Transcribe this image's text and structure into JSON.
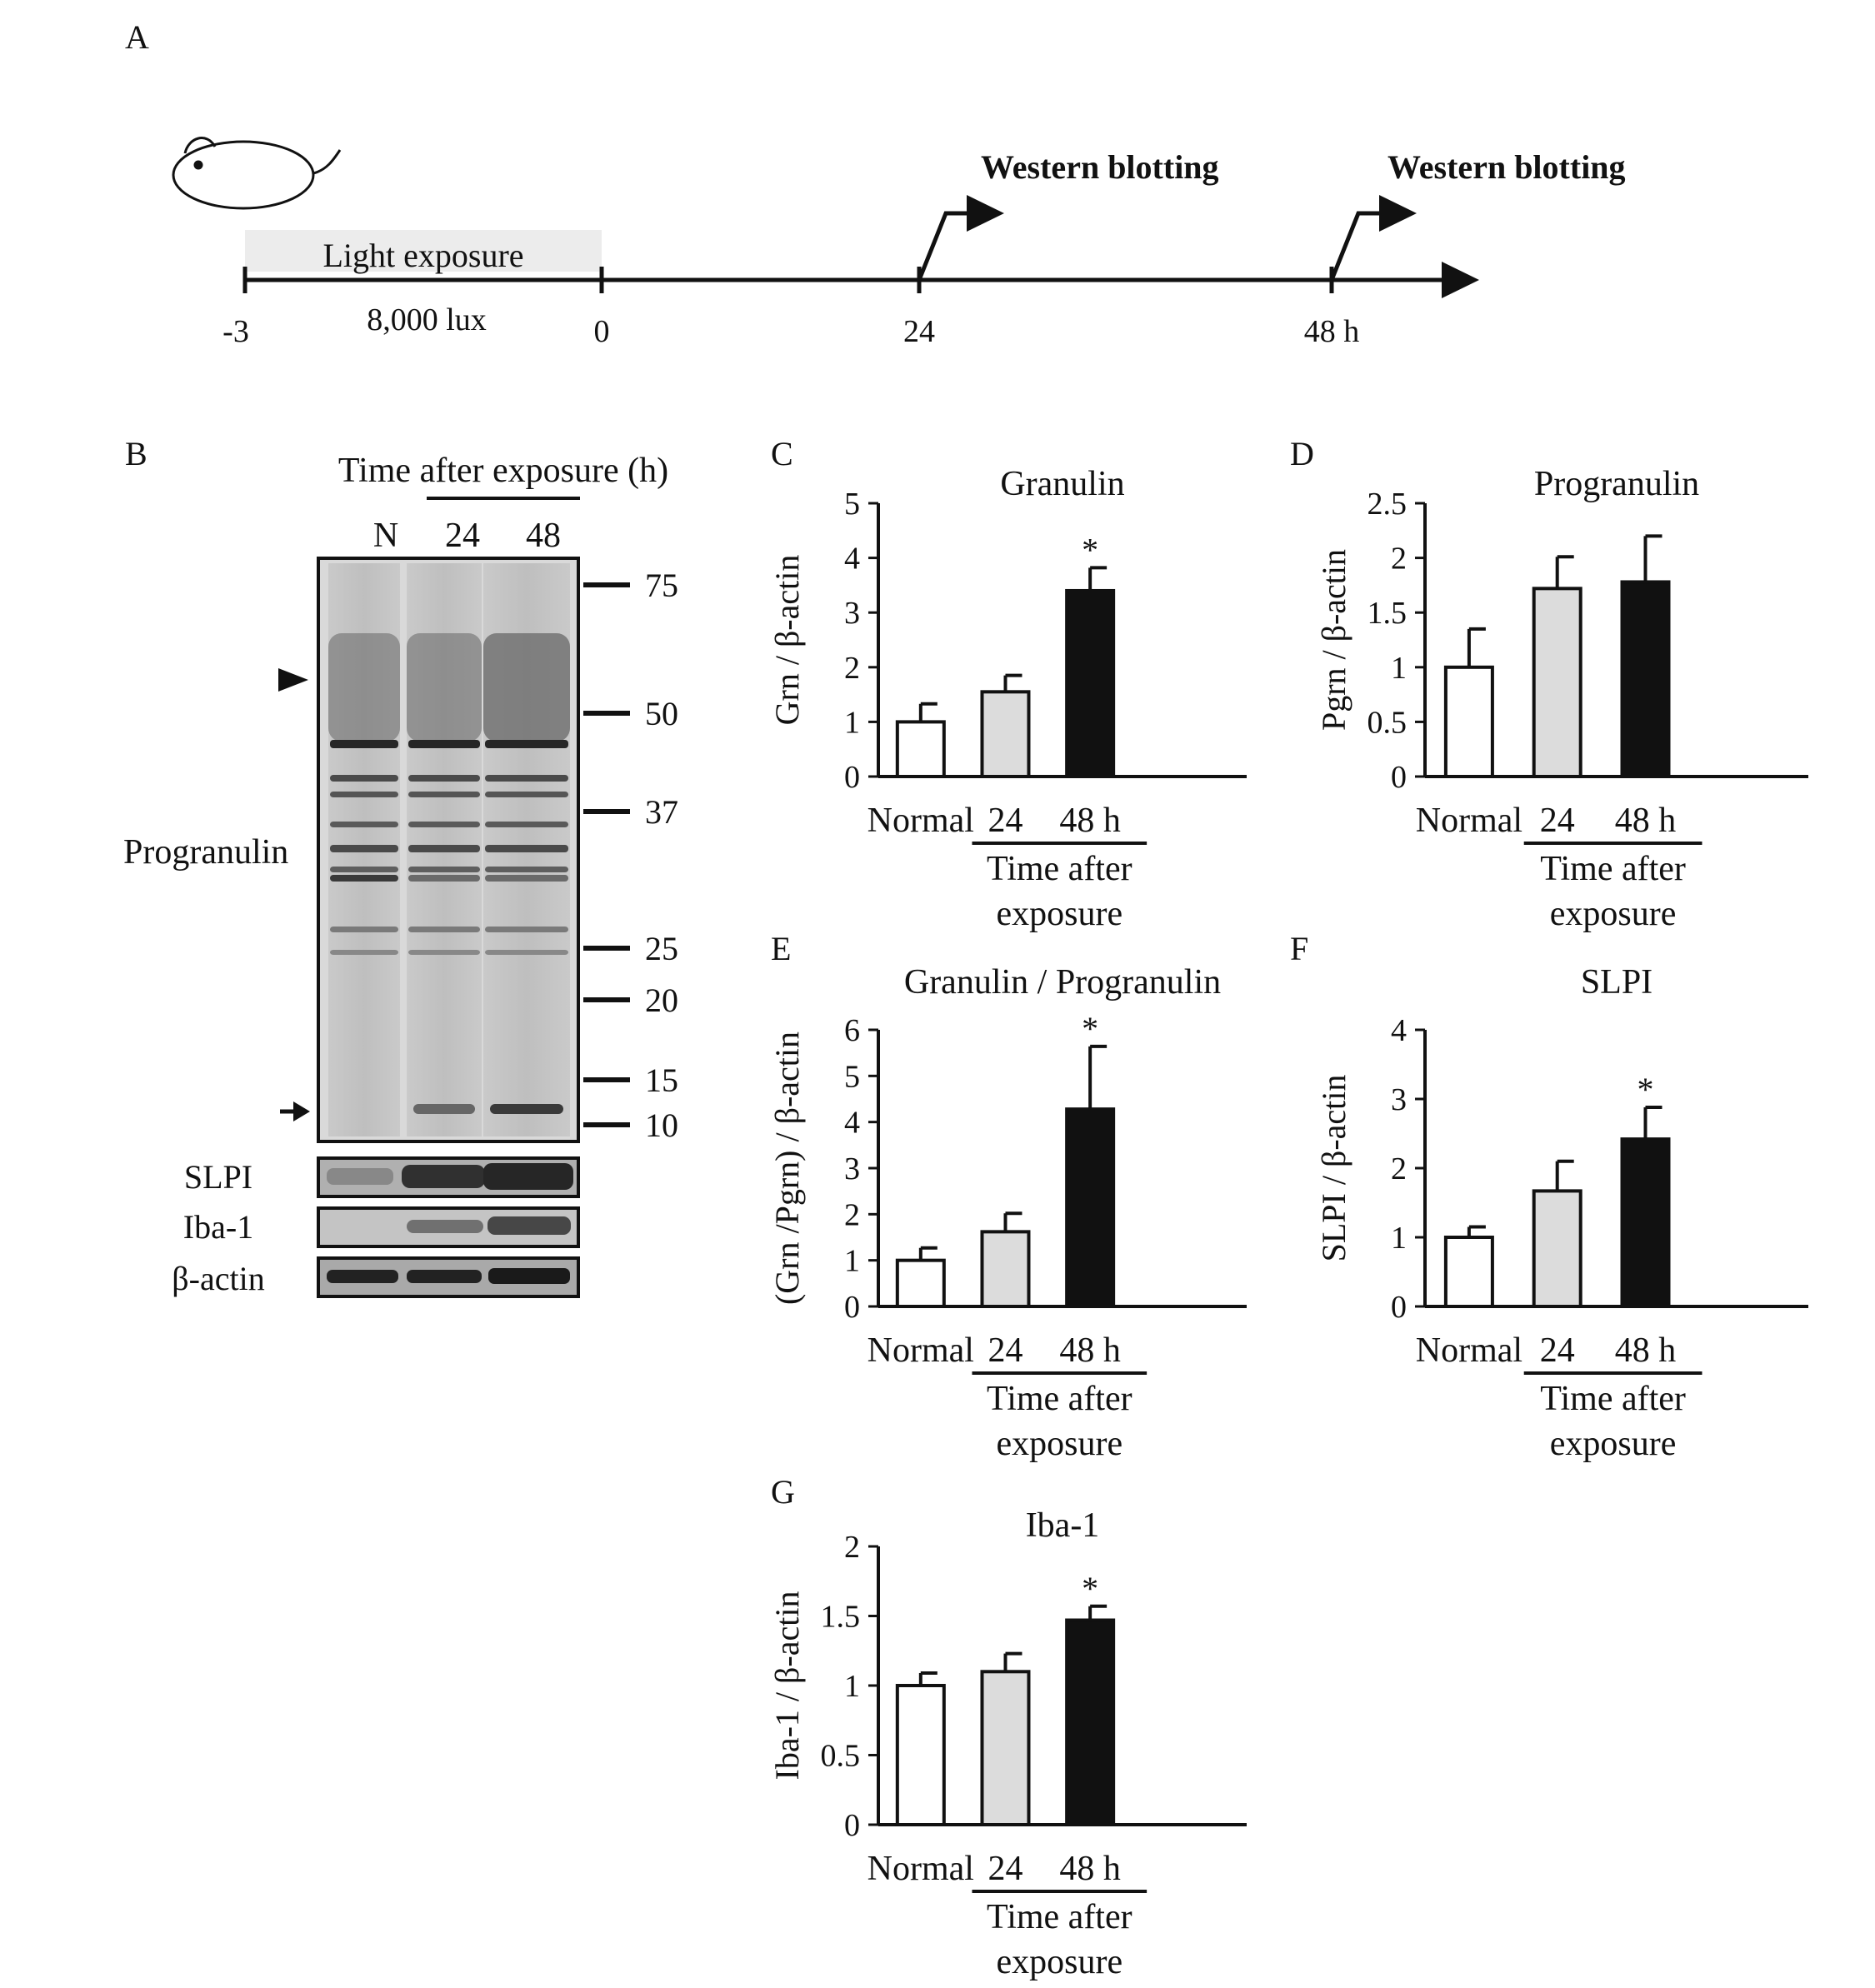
{
  "panel_labels": [
    "A",
    "B",
    "C",
    "D",
    "E",
    "F",
    "G"
  ],
  "timeline": {
    "light_label": "Light exposure",
    "lux_label": "8,000 lux",
    "ticks": [
      "-3",
      "0",
      "24",
      "48 h"
    ],
    "event_label": "Western blotting"
  },
  "blot": {
    "header": "Time after exposure (h)",
    "lanes": [
      "N",
      "24",
      "48"
    ],
    "markers": [
      "75",
      "50",
      "37",
      "25",
      "20",
      "15",
      "10"
    ],
    "main_label": "Progranulin",
    "sub_labels": [
      "SLPI",
      "Iba-1",
      "β-actin"
    ]
  },
  "colors": {
    "normal": "#ffffff",
    "h24": "#dcdcdc",
    "h48": "#111111"
  },
  "chart_data": [
    {
      "panel": "C",
      "type": "bar",
      "title": "Granulin",
      "ylabel": "Grn / β-actin",
      "categories": [
        "Normal",
        "24",
        "48 h"
      ],
      "group_label_1": "Time after",
      "group_label_2": "exposure",
      "values": [
        1.0,
        1.55,
        3.4
      ],
      "errors": [
        0.33,
        0.3,
        0.42
      ],
      "significant": [
        "",
        "",
        "*"
      ],
      "ylim": [
        0,
        5
      ],
      "yticks": [
        "0",
        "1",
        "2",
        "3",
        "4",
        "5"
      ]
    },
    {
      "panel": "D",
      "type": "bar",
      "title": "Progranulin",
      "ylabel": "Pgrn / β-actin",
      "categories": [
        "Normal",
        "24",
        "48 h"
      ],
      "group_label_1": "Time after",
      "group_label_2": "exposure",
      "values": [
        1.0,
        1.72,
        1.78
      ],
      "errors": [
        0.35,
        0.29,
        0.42
      ],
      "significant": [
        "",
        "",
        ""
      ],
      "ylim": [
        0,
        2.5
      ],
      "yticks": [
        "0",
        "0.5",
        "1",
        "1.5",
        "2",
        "2.5"
      ]
    },
    {
      "panel": "E",
      "type": "bar",
      "title": "Granulin / Progranulin",
      "ylabel": "(Grn /Pgrn) / β-actin",
      "categories": [
        "Normal",
        "24",
        "48 h"
      ],
      "group_label_1": "Time after",
      "group_label_2": "exposure",
      "values": [
        1.0,
        1.62,
        4.28
      ],
      "errors": [
        0.27,
        0.4,
        1.36
      ],
      "significant": [
        "",
        "",
        "*"
      ],
      "ylim": [
        0,
        6
      ],
      "yticks": [
        "0",
        "1",
        "2",
        "3",
        "4",
        "5",
        "6"
      ]
    },
    {
      "panel": "F",
      "type": "bar",
      "title": "SLPI",
      "ylabel": "SLPI / β-actin",
      "categories": [
        "Normal",
        "24",
        "48 h"
      ],
      "group_label_1": "Time after",
      "group_label_2": "exposure",
      "values": [
        1.0,
        1.67,
        2.42
      ],
      "errors": [
        0.15,
        0.43,
        0.46
      ],
      "significant": [
        "",
        "",
        "*"
      ],
      "ylim": [
        0,
        4
      ],
      "yticks": [
        "0",
        "1",
        "2",
        "3",
        "4"
      ]
    },
    {
      "panel": "G",
      "type": "bar",
      "title": "Iba-1",
      "ylabel": "Iba-1 / β-actin",
      "categories": [
        "Normal",
        "24",
        "48 h"
      ],
      "group_label_1": "Time after",
      "group_label_2": "exposure",
      "values": [
        1.0,
        1.1,
        1.47
      ],
      "errors": [
        0.09,
        0.13,
        0.1
      ],
      "significant": [
        "",
        "",
        "*"
      ],
      "ylim": [
        0,
        2
      ],
      "yticks": [
        "0",
        "0.5",
        "1",
        "1.5",
        "2"
      ]
    }
  ]
}
